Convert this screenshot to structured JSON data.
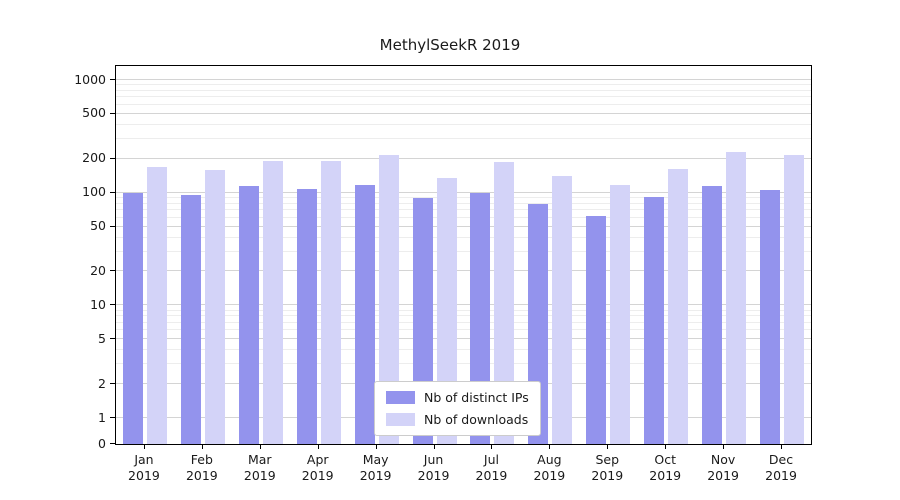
{
  "chart_data": {
    "type": "bar",
    "title": "MethylSeekR 2019",
    "y_scale": "symlog",
    "yticks": [
      0,
      1,
      2,
      5,
      10,
      20,
      50,
      100,
      200,
      500,
      1000
    ],
    "ylim": [
      0,
      1200
    ],
    "grid": true,
    "legend_position": "lower center",
    "x_tick_labels": [
      {
        "month": "Jan",
        "year": "2019"
      },
      {
        "month": "Feb",
        "year": "2019"
      },
      {
        "month": "Mar",
        "year": "2019"
      },
      {
        "month": "Apr",
        "year": "2019"
      },
      {
        "month": "May",
        "year": "2019"
      },
      {
        "month": "Jun",
        "year": "2019"
      },
      {
        "month": "Jul",
        "year": "2019"
      },
      {
        "month": "Aug",
        "year": "2019"
      },
      {
        "month": "Sep",
        "year": "2019"
      },
      {
        "month": "Oct",
        "year": "2019"
      },
      {
        "month": "Nov",
        "year": "2019"
      },
      {
        "month": "Dec",
        "year": "2019"
      }
    ],
    "series": [
      {
        "name": "Nb of distinct IPs",
        "color": "#9393ed",
        "values": [
          100,
          95,
          115,
          108,
          118,
          90,
          100,
          80,
          62,
          92,
          115,
          105
        ]
      },
      {
        "name": "Nb of downloads",
        "color": "#d3d3f8",
        "values": [
          170,
          160,
          190,
          190,
          215,
          135,
          188,
          140,
          118,
          162,
          228,
          215
        ]
      }
    ]
  }
}
